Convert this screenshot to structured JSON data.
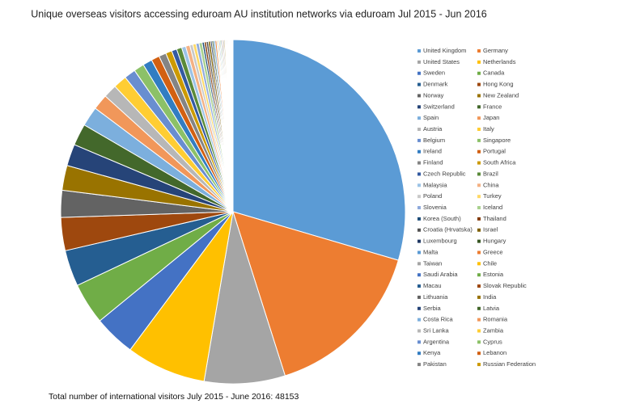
{
  "chart_data": {
    "type": "pie",
    "title": "Unique overseas visitors  accessing eduroam AU institution networks via eduroam Jul 2015 - Jun 2016",
    "subtitle": "Total number of international visitors July 2015 - June 2016: 48153",
    "categories": [
      "United Kingdom",
      "Germany",
      "United States",
      "Netherlands",
      "Sweden",
      "Canada",
      "Denmark",
      "Hong Kong",
      "Norway",
      "New Zealand",
      "Switzerland",
      "France",
      "Spain",
      "Japan",
      "Austria",
      "Italy",
      "Belgium",
      "Singapore",
      "Ireland",
      "Portugal",
      "Finland",
      "South Africa",
      "Czech Republic",
      "Brazil",
      "Malaysia",
      "China",
      "Poland",
      "Turkey",
      "Slovenia",
      "Iceland",
      "Korea (South)",
      "Thailand",
      "Croatia (Hrvatska)",
      "Israel",
      "Luxembourg",
      "Hungary",
      "Malta",
      "Greece",
      "Taiwan",
      "Chile",
      "Saudi Arabia",
      "Estonia",
      "Macau",
      "Slovak Republic",
      "Lithuania",
      "India",
      "Serbia",
      "Latvia",
      "Costa Rica",
      "Romania",
      "Sri Lanka",
      "Zambia",
      "Argentina",
      "Cyprus",
      "Kenya",
      "Lebanon",
      "Pakistan",
      "Russian Federation"
    ],
    "values": [
      30.4,
      16,
      7.8,
      7.7,
      4,
      4,
      3.5,
      3.2,
      2.6,
      2.4,
      2.1,
      2.1,
      1.9,
      1.5,
      1.3,
      1.3,
      1.1,
      1.0,
      0.9,
      0.8,
      0.7,
      0.6,
      0.5,
      0.5,
      0.4,
      0.4,
      0.3,
      0.3,
      0.3,
      0.3,
      0.2,
      0.2,
      0.2,
      0.2,
      0.15,
      0.15,
      0.15,
      0.15,
      0.1,
      0.1,
      0.1,
      0.1,
      0.1,
      0.1,
      0.1,
      0.1,
      0.08,
      0.08,
      0.08,
      0.08,
      0.06,
      0.06,
      0.06,
      0.06,
      0.05,
      0.05,
      0.05,
      0.05
    ],
    "colors": [
      "#5b9bd5",
      "#ed7d31",
      "#a5a5a5",
      "#ffc000",
      "#4472c4",
      "#70ad47",
      "#255e91",
      "#9e480e",
      "#636363",
      "#997300",
      "#264478",
      "#43682b",
      "#7cafdd",
      "#f1975a",
      "#b7b7b7",
      "#ffcd33",
      "#698ed0",
      "#8cc168",
      "#327dc2",
      "#d26012",
      "#848484",
      "#cc9a00",
      "#335aa1",
      "#5a8a39",
      "#9cc3e6",
      "#f4b183",
      "#c9c9c9",
      "#ffd966",
      "#8faadc",
      "#a9d18e",
      "#1f4e79",
      "#843c0c",
      "#525252",
      "#7f6000",
      "#203864",
      "#385723",
      "#5b9bd5",
      "#ed7d31",
      "#a5a5a5",
      "#ffc000",
      "#4472c4",
      "#70ad47",
      "#255e91",
      "#9e480e",
      "#636363",
      "#997300",
      "#264478",
      "#43682b",
      "#7cafdd",
      "#f1975a",
      "#b7b7b7",
      "#ffcd33",
      "#698ed0",
      "#8cc168",
      "#327dc2",
      "#d26012",
      "#848484",
      "#cc9a00"
    ]
  }
}
